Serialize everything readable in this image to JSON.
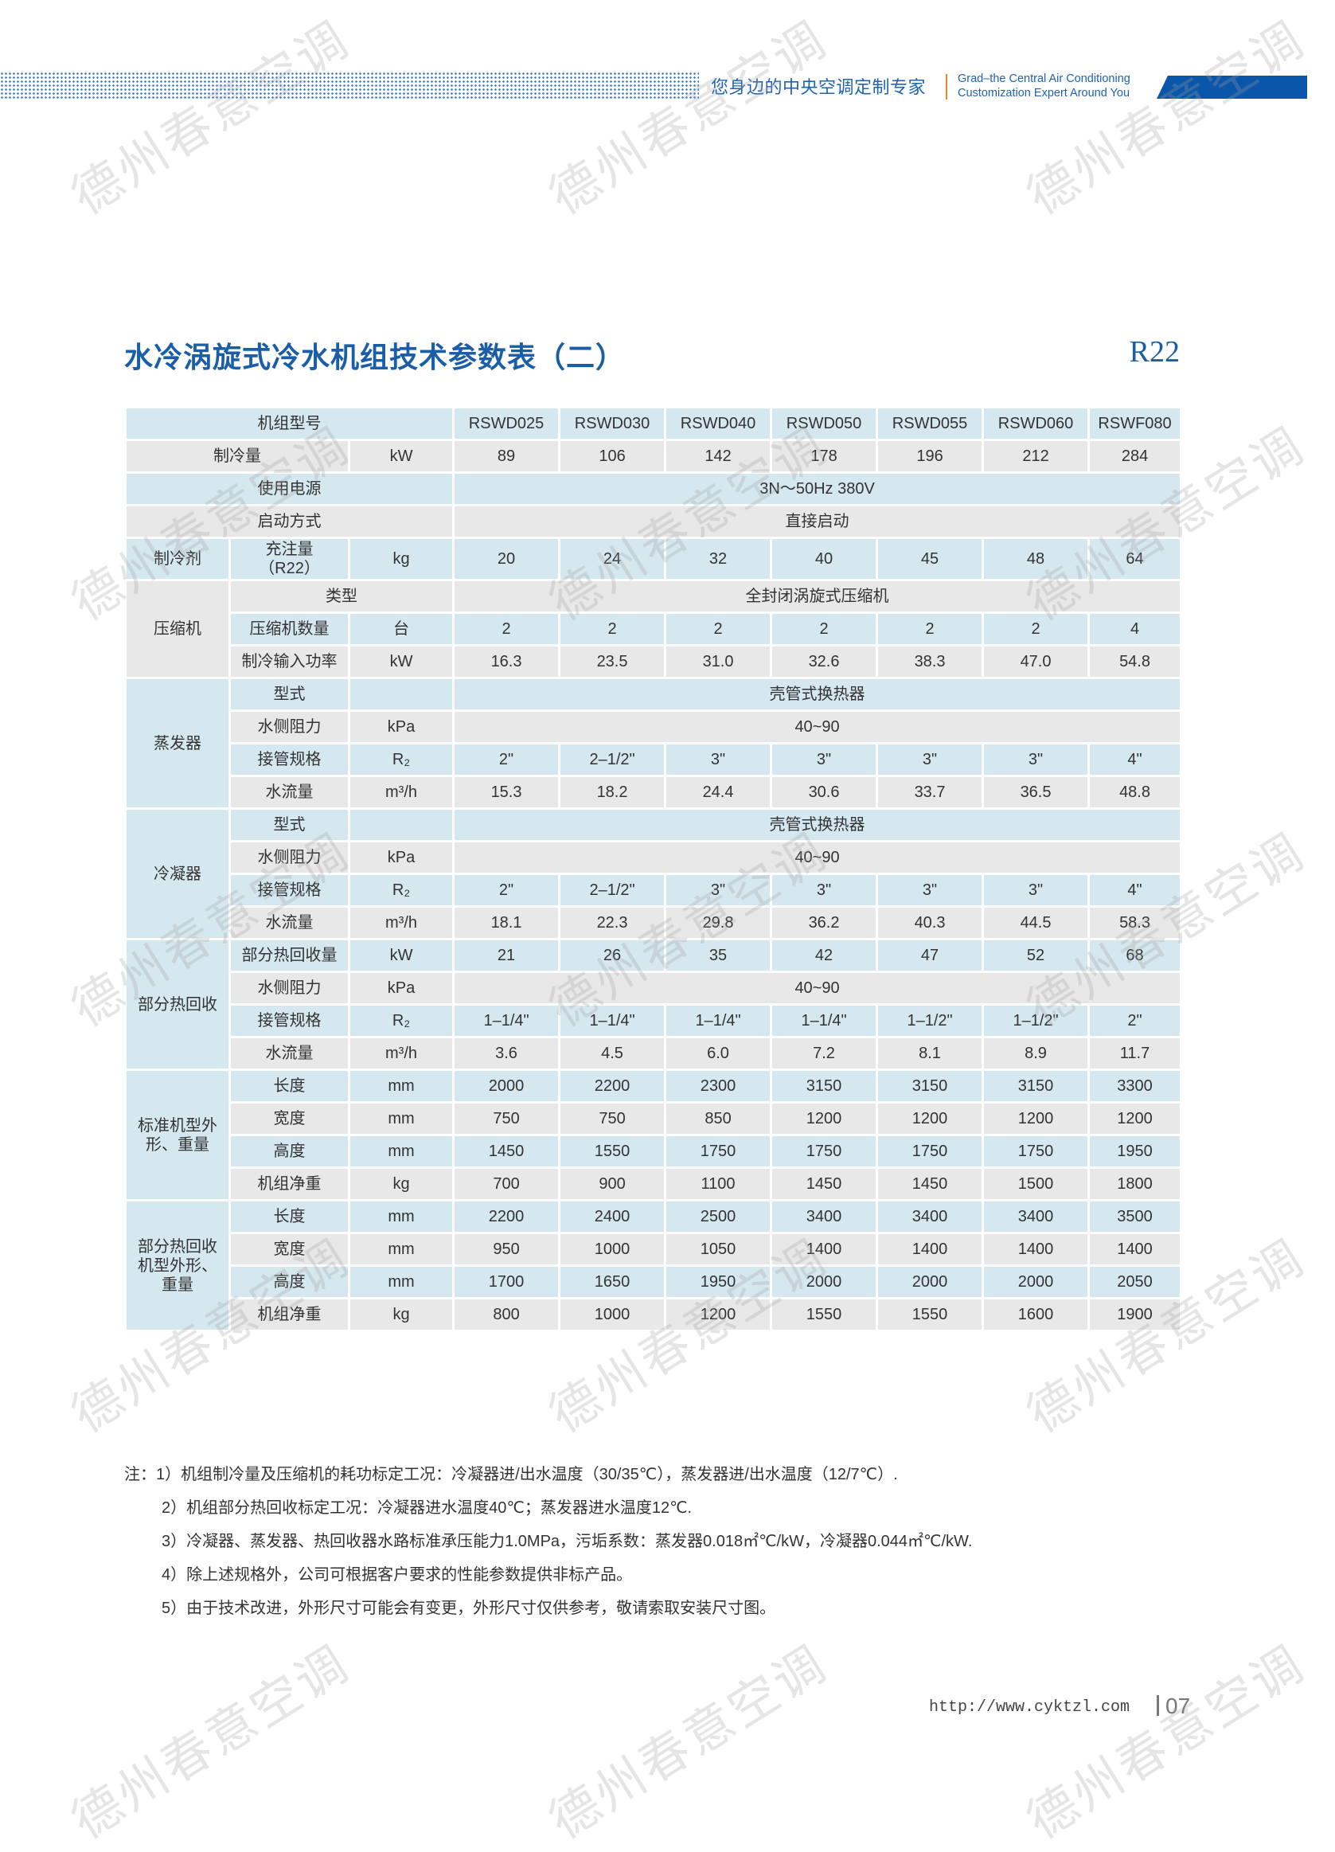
{
  "header": {
    "slogan_cn": "您身边的中央空调定制专家",
    "slogan_en_line1": "Grad–the Central Air Conditioning",
    "slogan_en_line2": "Customization Expert Around You",
    "brand_color": "#0a56aa"
  },
  "title": "水冷涡旋式冷水机组技术参数表（二）",
  "refrigerant_tag": "R22",
  "table": {
    "header_label": "机组型号",
    "models": [
      "RSWD025",
      "RSWD030",
      "RSWD040",
      "RSWD050",
      "RSWD055",
      "RSWD060",
      "RSWF080"
    ],
    "items": [
      {
        "label": "制冷量",
        "unit": "kW",
        "values": [
          "89",
          "106",
          "142",
          "178",
          "196",
          "212",
          "284"
        ]
      },
      {
        "label": "使用电源",
        "value": "3N～50Hz   380V"
      },
      {
        "label": "启动方式",
        "value": "直接启动"
      },
      {
        "group": "制冷剂",
        "rows": [
          {
            "label": "充注量\n（R22）",
            "unit": "kg",
            "values": [
              "20",
              "24",
              "32",
              "40",
              "45",
              "48",
              "64"
            ]
          }
        ]
      },
      {
        "group": "压缩机",
        "rows": [
          {
            "label": "类型",
            "value": "全封闭涡旋式压缩机"
          },
          {
            "label": "压缩机数量",
            "unit": "台",
            "values": [
              "2",
              "2",
              "2",
              "2",
              "2",
              "2",
              "4"
            ]
          },
          {
            "label": "制冷输入功率",
            "unit": "kW",
            "values": [
              "16.3",
              "23.5",
              "31.0",
              "32.6",
              "38.3",
              "47.0",
              "54.8"
            ]
          }
        ]
      },
      {
        "group": "蒸发器",
        "rows": [
          {
            "label": "型式",
            "unit": "",
            "value": "壳管式换热器"
          },
          {
            "label": "水侧阻力",
            "unit": "kPa",
            "value": "40~90"
          },
          {
            "label": "接管规格",
            "unit": "R₂",
            "values": [
              "2\"",
              "2–1/2\"",
              "3\"",
              "3\"",
              "3\"",
              "3\"",
              "4\""
            ]
          },
          {
            "label": "水流量",
            "unit": "m³/h",
            "values": [
              "15.3",
              "18.2",
              "24.4",
              "30.6",
              "33.7",
              "36.5",
              "48.8"
            ]
          }
        ]
      },
      {
        "group": "冷凝器",
        "rows": [
          {
            "label": "型式",
            "unit": "",
            "value": "壳管式换热器"
          },
          {
            "label": "水侧阻力",
            "unit": "kPa",
            "value": "40~90"
          },
          {
            "label": "接管规格",
            "unit": "R₂",
            "values": [
              "2\"",
              "2–1/2\"",
              "3\"",
              "3\"",
              "3\"",
              "3\"",
              "4\""
            ]
          },
          {
            "label": "水流量",
            "unit": "m³/h",
            "values": [
              "18.1",
              "22.3",
              "29.8",
              "36.2",
              "40.3",
              "44.5",
              "58.3"
            ]
          }
        ]
      },
      {
        "group": "部分热回收",
        "rows": [
          {
            "label": "部分热回收量",
            "unit": "kW",
            "values": [
              "21",
              "26",
              "35",
              "42",
              "47",
              "52",
              "68"
            ]
          },
          {
            "label": "水侧阻力",
            "unit": "kPa",
            "value": "40~90"
          },
          {
            "label": "接管规格",
            "unit": "R₂",
            "values": [
              "1–1/4\"",
              "1–1/4\"",
              "1–1/4\"",
              "1–1/4\"",
              "1–1/2\"",
              "1–1/2\"",
              "2\""
            ]
          },
          {
            "label": "水流量",
            "unit": "m³/h",
            "values": [
              "3.6",
              "4.5",
              "6.0",
              "7.2",
              "8.1",
              "8.9",
              "11.7"
            ]
          }
        ]
      },
      {
        "group": "标准机型外\n形、重量",
        "rows": [
          {
            "label": "长度",
            "unit": "mm",
            "values": [
              "2000",
              "2200",
              "2300",
              "3150",
              "3150",
              "3150",
              "3300"
            ]
          },
          {
            "label": "宽度",
            "unit": "mm",
            "values": [
              "750",
              "750",
              "850",
              "1200",
              "1200",
              "1200",
              "1200"
            ]
          },
          {
            "label": "高度",
            "unit": "mm",
            "values": [
              "1450",
              "1550",
              "1750",
              "1750",
              "1750",
              "1750",
              "1950"
            ]
          },
          {
            "label": "机组净重",
            "unit": "kg",
            "values": [
              "700",
              "900",
              "1100",
              "1450",
              "1450",
              "1500",
              "1800"
            ]
          }
        ]
      },
      {
        "group": "部分热回收\n机型外形、\n重量",
        "rows": [
          {
            "label": "长度",
            "unit": "mm",
            "values": [
              "2200",
              "2400",
              "2500",
              "3400",
              "3400",
              "3400",
              "3500"
            ]
          },
          {
            "label": "宽度",
            "unit": "mm",
            "values": [
              "950",
              "1000",
              "1050",
              "1400",
              "1400",
              "1400",
              "1400"
            ]
          },
          {
            "label": "高度",
            "unit": "mm",
            "values": [
              "1700",
              "1650",
              "1950",
              "2000",
              "2000",
              "2000",
              "2050"
            ]
          },
          {
            "label": "机组净重",
            "unit": "kg",
            "values": [
              "800",
              "1000",
              "1200",
              "1550",
              "1550",
              "1600",
              "1900"
            ]
          }
        ]
      }
    ],
    "colors": {
      "blue_row": "#d5e8f0",
      "grey_row": "#e8e8e8"
    }
  },
  "notes": [
    "注：1）机组制冷量及压缩机的耗功标定工况：冷凝器进/出水温度（30/35℃），蒸发器进/出水温度（12/7℃）.",
    "2）机组部分热回收标定工况：冷凝器进水温度40℃；蒸发器进水温度12℃.",
    "3）冷凝器、蒸发器、热回收器水路标准承压能力1.0MPa，污垢系数：蒸发器0.018㎡℃/kW，冷凝器0.044㎡℃/kW.",
    "4）除上述规格外，公司可根据客户要求的性能参数提供非标产品。",
    "5）由于技术改进，外形尺寸可能会有变更，外形尺寸仅供参考，敬请索取安装尺寸图。"
  ],
  "footer": {
    "url": "http://www.cyktzl.com",
    "page": "07"
  },
  "watermark": "德州春意空调"
}
